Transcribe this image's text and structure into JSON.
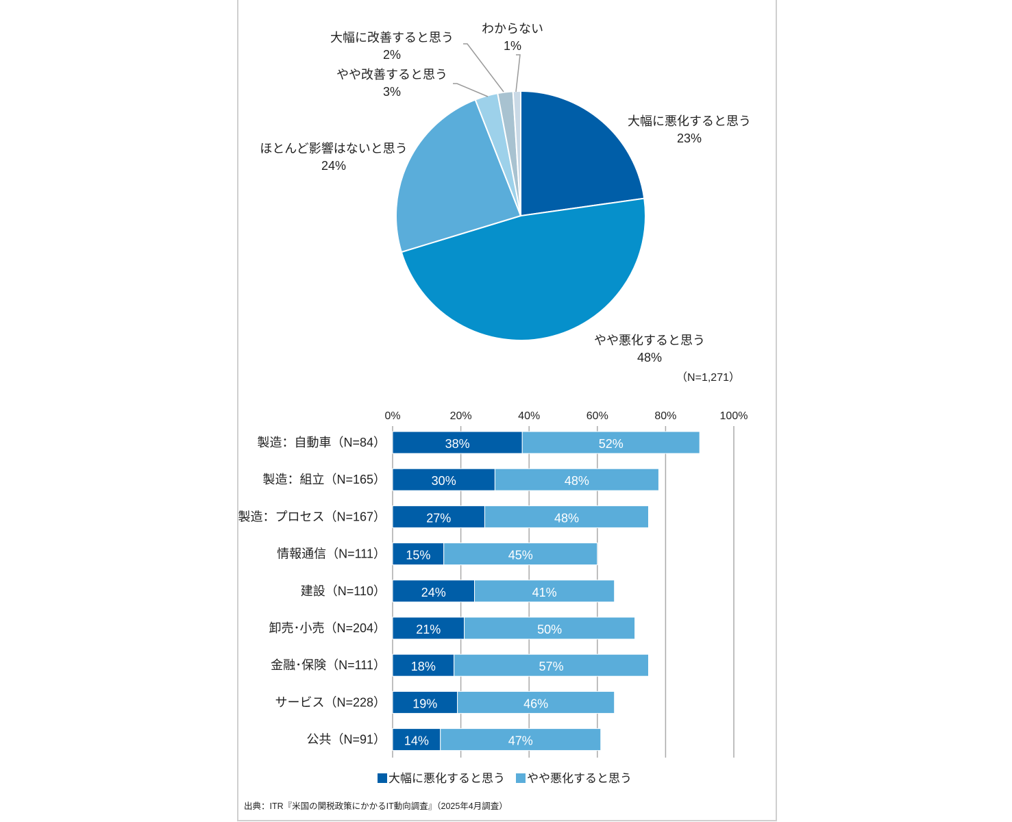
{
  "chart_data": [
    {
      "type": "pie",
      "n_label": "（N=1,271）",
      "slices": [
        {
          "label": "大幅に悪化すると思う",
          "value": 23,
          "value_label": "23%",
          "color": "#005EA8"
        },
        {
          "label": "やや悪化すると思う",
          "value": 48,
          "value_label": "48%",
          "color": "#0690CB"
        },
        {
          "label": "ほとんど影響はないと思う",
          "value": 24,
          "value_label": "24%",
          "color": "#5AADDA"
        },
        {
          "label": "やや改善すると思う",
          "value": 3,
          "value_label": "3%",
          "color": "#9DD1EA"
        },
        {
          "label": "大幅に改善すると思う",
          "value": 2,
          "value_label": "2%",
          "color": "#A8C2D0"
        },
        {
          "label": "わからない",
          "value": 1,
          "value_label": "1%",
          "color": "#C9D9E6"
        }
      ]
    },
    {
      "type": "bar",
      "orientation": "horizontal",
      "stacked": true,
      "xlim": [
        0,
        100
      ],
      "xticks": [
        "0%",
        "20%",
        "40%",
        "60%",
        "80%",
        "100%"
      ],
      "grid": true,
      "categories": [
        "製造：自動車（N=84）",
        "製造：組立（N=165）",
        "製造：プロセス（N=167）",
        "情報通信（N=111）",
        "建設（N=110）",
        "卸売･小売（N=204）",
        "金融･保険（N=111）",
        "サービス（N=228）",
        "公共（N=91）"
      ],
      "series": [
        {
          "name": "大幅に悪化すると思う",
          "color": "#005EA8",
          "values": [
            38,
            30,
            27,
            15,
            24,
            21,
            18,
            19,
            14
          ]
        },
        {
          "name": "やや悪化すると思う",
          "color": "#5AADDA",
          "values": [
            52,
            48,
            48,
            45,
            41,
            50,
            57,
            46,
            47
          ]
        }
      ],
      "legend_position": "bottom"
    }
  ],
  "source": "出典：ITR『米国の関税政策にかかるIT動向調査』（2025年4月調査）"
}
